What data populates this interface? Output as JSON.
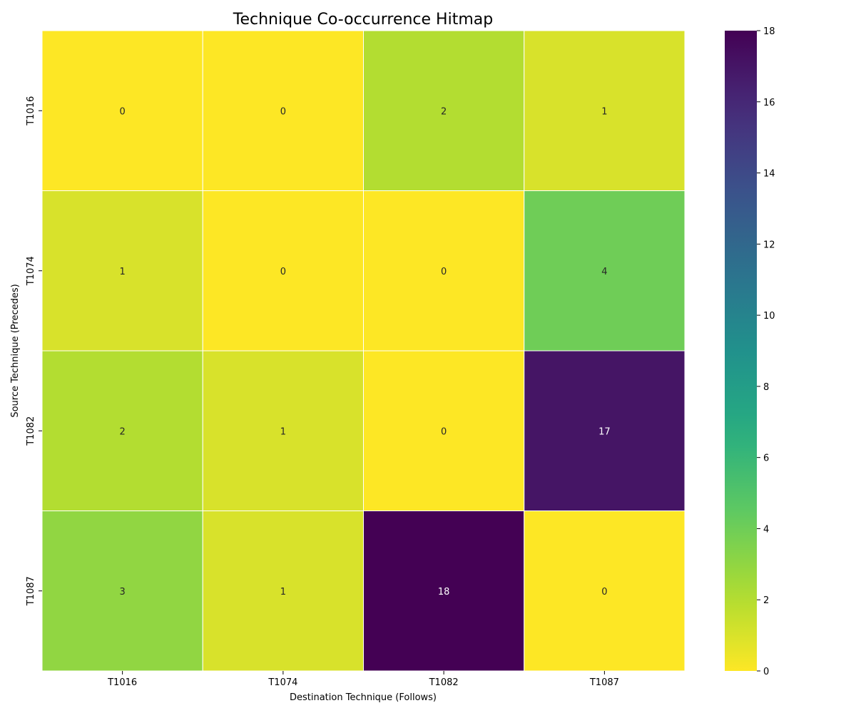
{
  "chart_data": {
    "type": "heatmap",
    "title": "Technique Co-occurrence Hitmap",
    "xlabel": "Destination Technique (Follows)",
    "ylabel": "Source Technique (Precedes)",
    "x_categories": [
      "T1016",
      "T1074",
      "T1082",
      "T1087"
    ],
    "y_categories": [
      "T1016",
      "T1074",
      "T1082",
      "T1087"
    ],
    "values": [
      [
        0,
        0,
        2,
        1
      ],
      [
        1,
        0,
        0,
        4
      ],
      [
        2,
        1,
        0,
        17
      ],
      [
        3,
        1,
        18,
        0
      ]
    ],
    "colorscale": "viridis_r",
    "vmin": 0,
    "vmax": 18,
    "colorbar_ticks": [
      0,
      2,
      4,
      6,
      8,
      10,
      12,
      14,
      16,
      18
    ],
    "annotations": true
  }
}
